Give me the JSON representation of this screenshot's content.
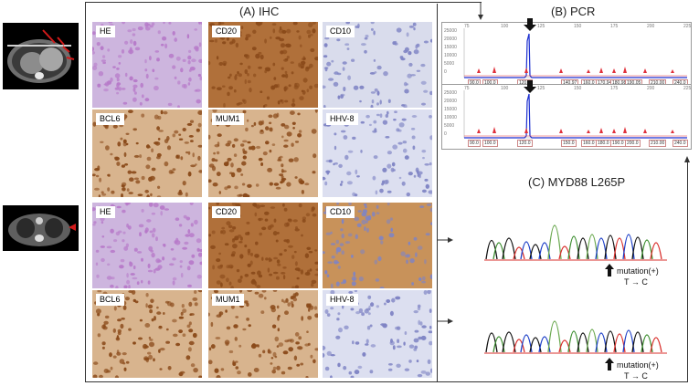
{
  "panels": {
    "ihc_title": "(A) IHC",
    "pcr_title": "(B) PCR",
    "myd88_title": "(C) MYD88 L265P"
  },
  "ihc_rows": [
    [
      "HE",
      "CD20",
      "CD10"
    ],
    [
      "BCL6",
      "MUM1",
      "HHV-8"
    ],
    [
      "HE",
      "CD20",
      "CD10"
    ],
    [
      "BCL6",
      "MUM1",
      "HHV-8"
    ]
  ],
  "pcr": {
    "top": {
      "axis_ticks": [
        "75",
        "100",
        "125",
        "150",
        "175",
        "200",
        "225"
      ],
      "y_ticks": [
        "25000",
        "20000",
        "15000",
        "10000",
        "5000",
        "0"
      ],
      "size_labels": [
        "90.0",
        "100.0",
        "120.0",
        "140.97",
        "160.0",
        "170.94",
        "180.98",
        "190.05",
        "210.00",
        "240.0"
      ]
    },
    "bottom": {
      "axis_ticks": [
        "75",
        "100",
        "125",
        "150",
        "175",
        "200",
        "225"
      ],
      "y_ticks": [
        "25000",
        "20000",
        "15000",
        "10000",
        "5000",
        "0"
      ],
      "size_labels": [
        "90.0",
        "100.0",
        "120.0",
        "150.0",
        "160.0",
        "180.0",
        "190.0",
        "200.0",
        "210.00",
        "240.0"
      ]
    }
  },
  "sequencing": [
    {
      "label_line1": "mutation(+)",
      "label_line2": "T → C"
    },
    {
      "label_line1": "mutation(+)",
      "label_line2": "T → C"
    }
  ],
  "colors": {
    "he_stain": "#b77ac9",
    "dab_brown": "#8a4a1a",
    "hematoxylin_blue": "#7f84c4",
    "ct_arrow": "#d11a1a",
    "pcr_peak": "#1c2fd0",
    "pcr_marker": "#e0303a"
  }
}
